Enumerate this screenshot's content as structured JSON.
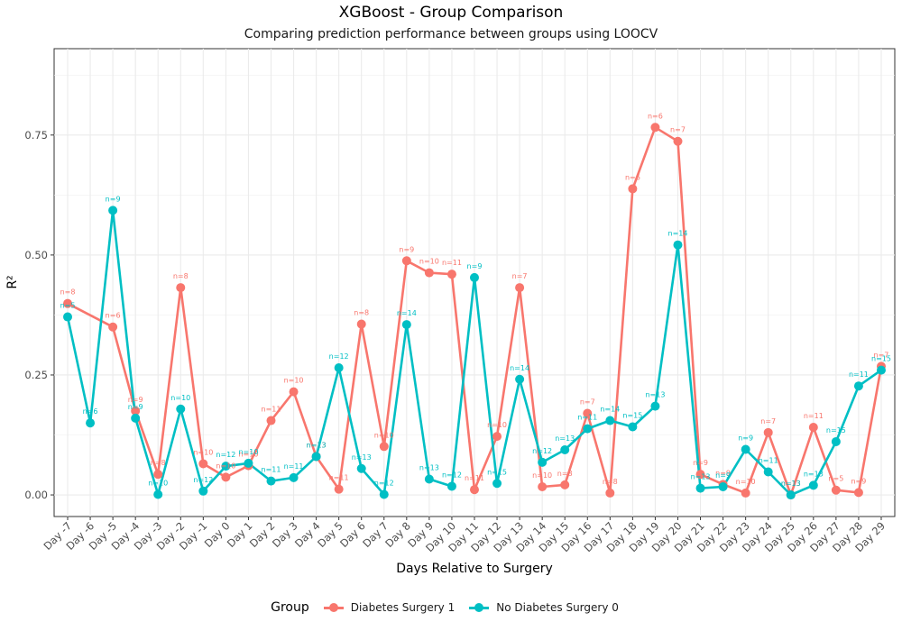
{
  "chart_data": {
    "type": "line",
    "title": "XGBoost - Group Comparison",
    "subtitle": "Comparing prediction performance between groups using LOOCV",
    "xlabel": "Days Relative to Surgery",
    "ylabel": "R²",
    "ylim": [
      -0.045,
      0.93
    ],
    "yticks": [
      0.0,
      0.25,
      0.5,
      0.75
    ],
    "ytick_labels": [
      "0.00",
      "0.25",
      "0.50",
      "0.75"
    ],
    "grid": true,
    "legend_position": "bottom",
    "legend_title": "Group",
    "categories": [
      "Day -7",
      "Day -6",
      "Day -5",
      "Day -4",
      "Day -3",
      "Day -2",
      "Day -1",
      "Day 0",
      "Day 1",
      "Day 2",
      "Day 3",
      "Day 4",
      "Day 5",
      "Day 6",
      "Day 7",
      "Day 8",
      "Day 9",
      "Day 10",
      "Day 11",
      "Day 12",
      "Day 13",
      "Day 14",
      "Day 15",
      "Day 16",
      "Day 17",
      "Day 18",
      "Day 19",
      "Day 20",
      "Day 21",
      "Day 22",
      "Day 23",
      "Day 24",
      "Day 25",
      "Day 26",
      "Day 27",
      "Day 28",
      "Day 29"
    ],
    "series": [
      {
        "name": "Diabetes Surgery 1",
        "color": "#F8766D",
        "values": [
          0.399,
          null,
          0.35,
          0.175,
          0.043,
          0.432,
          0.065,
          0.037,
          0.061,
          0.155,
          0.215,
          0.08,
          0.012,
          0.356,
          0.101,
          0.488,
          0.463,
          0.46,
          0.011,
          0.122,
          0.432,
          0.017,
          0.021,
          0.17,
          0.004,
          0.638,
          0.766,
          0.737,
          0.043,
          0.022,
          0.004,
          0.13,
          0.0,
          0.141,
          0.01,
          0.005,
          0.268
        ],
        "labels": [
          "n=8",
          null,
          "n=6",
          "n=9",
          "n=8",
          "n=8",
          "n=10",
          "n=10",
          "n=10",
          "n=11",
          "n=10",
          "n=13",
          "n=11",
          "n=8",
          "n=10",
          "n=9",
          "n=10",
          "n=11",
          "n=11",
          "n=10",
          "n=7",
          "n=10",
          "n=8",
          "n=7",
          "n=8",
          "n=6",
          "n=6",
          "n=7",
          "n=9",
          "n=9",
          "n=10",
          "n=7",
          "n=13",
          "n=11",
          "n=5",
          "n=9",
          "n=7"
        ]
      },
      {
        "name": "No Diabetes Surgery 0",
        "color": "#00BFC4",
        "values": [
          0.371,
          0.15,
          0.593,
          0.16,
          0.001,
          0.179,
          0.008,
          0.06,
          0.066,
          0.029,
          0.036,
          0.08,
          0.265,
          0.055,
          0.001,
          0.355,
          0.033,
          0.018,
          0.453,
          0.024,
          0.241,
          0.068,
          0.094,
          0.138,
          0.155,
          0.142,
          0.185,
          0.521,
          0.014,
          0.017,
          0.095,
          0.048,
          0.0,
          0.02,
          0.111,
          0.227,
          0.26
        ],
        "labels": [
          "n=5",
          "n=6",
          "n=9",
          "n=9",
          "n=10",
          "n=10",
          "n=12",
          "n=12",
          "n=10",
          "n=11",
          "n=11",
          "n=13",
          "n=12",
          "n=13",
          "n=12",
          "n=14",
          "n=13",
          "n=12",
          "n=9",
          "n=15",
          "n=14",
          "n=12",
          "n=13",
          "n=11",
          "n=14",
          "n=15",
          "n=13",
          "n=14",
          "n=13",
          "n=9",
          "n=9",
          "n=11",
          "n=13",
          "n=13",
          "n=15",
          "n=11",
          "n=15"
        ]
      }
    ]
  }
}
